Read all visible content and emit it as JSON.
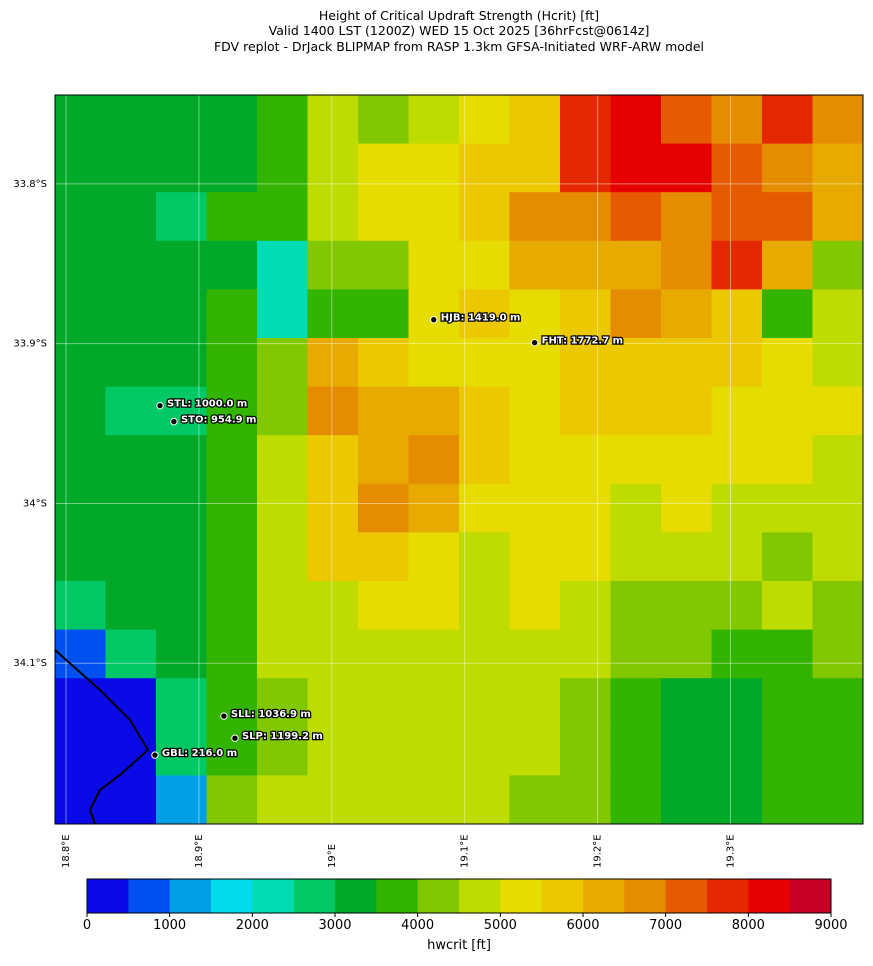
{
  "chart_data": {
    "type": "map",
    "title": [
      "Height of Critical Updraft Strength (Hcrit) [ft]",
      "Valid 1400 LST (1200Z) WED 15 Oct 2025 [36hrFcst@0614z]",
      "FDV replot - DrJack BLIPMAP from RASP 1.3km GFSA-Initiated WRF-ARW model"
    ],
    "xlim": [
      18.7917,
      19.3997
    ],
    "ylim": [
      -34.2006,
      -33.7444
    ],
    "xticks": [
      {
        "value": 18.8,
        "label": "18.8°E"
      },
      {
        "value": 18.9,
        "label": "18.9°E"
      },
      {
        "value": 19.0,
        "label": "19°E"
      },
      {
        "value": 19.1,
        "label": "19.1°E"
      },
      {
        "value": 19.2,
        "label": "19.2°E"
      },
      {
        "value": 19.3,
        "label": "19.3°E"
      }
    ],
    "yticks": [
      {
        "value": -33.8,
        "label": "33.8°S"
      },
      {
        "value": -33.9,
        "label": "33.9°S"
      },
      {
        "value": -34.0,
        "label": "34°S"
      },
      {
        "value": -34.1,
        "label": "34.1°S"
      }
    ],
    "grid": true,
    "field": {
      "values": [
        [
          3200,
          3200,
          3300,
          3200,
          3800,
          4500,
          4200,
          4800,
          5200,
          5800,
          7800,
          8200,
          7000,
          6800,
          7500,
          6500
        ],
        [
          3300,
          3200,
          3300,
          3200,
          3600,
          4800,
          5000,
          5300,
          5500,
          5800,
          7600,
          8100,
          8300,
          7200,
          6500,
          6200
        ],
        [
          3300,
          3200,
          2800,
          3500,
          3700,
          4600,
          5200,
          5300,
          5500,
          6800,
          6800,
          7000,
          6800,
          7400,
          7200,
          6000
        ],
        [
          3300,
          3200,
          3300,
          3300,
          2200,
          4000,
          4000,
          5000,
          5200,
          6000,
          6000,
          6300,
          6800,
          7600,
          6200,
          4000
        ],
        [
          3200,
          3300,
          3300,
          3600,
          2000,
          3800,
          3800,
          5300,
          5800,
          5200,
          5800,
          6500,
          6200,
          5600,
          3800,
          4500
        ],
        [
          3300,
          3300,
          3300,
          3800,
          4300,
          6000,
          5800,
          5200,
          5300,
          5300,
          5600,
          5800,
          5500,
          5500,
          5200,
          4800
        ],
        [
          3300,
          2800,
          2500,
          3600,
          4300,
          6800,
          6200,
          6000,
          5800,
          5200,
          5500,
          5600,
          5500,
          5300,
          5200,
          5000
        ],
        [
          3200,
          3200,
          3000,
          3600,
          4500,
          5600,
          6200,
          6500,
          5800,
          5300,
          5200,
          5200,
          5300,
          5200,
          5000,
          4800
        ],
        [
          3300,
          3300,
          3300,
          3800,
          4600,
          5800,
          6500,
          6100,
          5200,
          5200,
          5100,
          4800,
          5000,
          4800,
          4800,
          4600
        ],
        [
          3300,
          3200,
          3300,
          3800,
          4700,
          5600,
          5800,
          5200,
          4800,
          5100,
          5200,
          4600,
          4800,
          4600,
          4300,
          4600
        ],
        [
          2500,
          3300,
          3300,
          3800,
          4500,
          4800,
          5200,
          5200,
          4800,
          5000,
          4800,
          4400,
          4200,
          4300,
          4800,
          4300
        ],
        [
          800,
          2800,
          3300,
          3700,
          4500,
          4700,
          4800,
          4700,
          4700,
          4800,
          4700,
          4000,
          4000,
          3700,
          3900,
          4200
        ],
        [
          300,
          300,
          2700,
          3500,
          4300,
          4600,
          4600,
          4700,
          4700,
          4600,
          4300,
          3700,
          3300,
          3300,
          3500,
          3700
        ],
        [
          300,
          300,
          2500,
          3700,
          4400,
          4700,
          4700,
          4600,
          4600,
          4500,
          4300,
          3700,
          3300,
          3300,
          3600,
          3600
        ],
        [
          400,
          300,
          1200,
          4200,
          4600,
          4800,
          4800,
          4600,
          4500,
          4300,
          4200,
          3700,
          3400,
          3300,
          3600,
          3700
        ]
      ]
    },
    "stations": [
      {
        "label": "HJB: 1419.0 m",
        "lon": 19.0767,
        "lat": -33.885
      },
      {
        "label": "FHT: 1772.7 m",
        "lon": 19.1526,
        "lat": -33.8994
      },
      {
        "label": "STL: 1000.0 m",
        "lon": 18.8707,
        "lat": -33.9388
      },
      {
        "label": "STO: 954.9 m",
        "lon": 18.8812,
        "lat": -33.9488
      },
      {
        "label": "SLL: 1036.9 m",
        "lon": 18.9188,
        "lat": -34.1331
      },
      {
        "label": "SLP: 1199.2 m",
        "lon": 18.9271,
        "lat": -34.1469
      },
      {
        "label": "GBL: 216.0 m",
        "lon": 18.8669,
        "lat": -34.1575
      }
    ],
    "colorbar": {
      "label": "hwcrit [ft]",
      "levels": [
        0,
        500,
        1000,
        1500,
        2000,
        2500,
        3000,
        3500,
        4000,
        4500,
        5000,
        5500,
        6000,
        6500,
        7000,
        7500,
        8000,
        8500,
        9000
      ],
      "colors": [
        "#0a0ae6",
        "#0050f0",
        "#00a0e6",
        "#00dcec",
        "#00dcb4",
        "#00c864",
        "#00aa28",
        "#32b400",
        "#82c800",
        "#bedc00",
        "#e6dc00",
        "#ebc800",
        "#e6aa00",
        "#e68c00",
        "#e65a00",
        "#e62800",
        "#e60000",
        "#c80028"
      ],
      "ticks": [
        0,
        1000,
        2000,
        3000,
        4000,
        5000,
        6000,
        7000,
        8000,
        9000
      ]
    }
  }
}
